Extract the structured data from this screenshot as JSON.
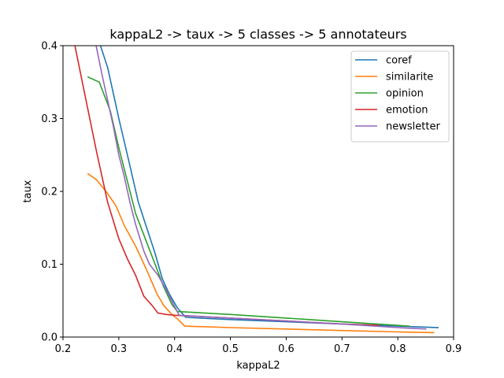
{
  "chart_data": {
    "type": "line",
    "title": "kappaL2 -> taux -> 5 classes -> 5 annotateurs",
    "xlabel": "kappaL2",
    "ylabel": "taux",
    "xlim": [
      0.2,
      0.9
    ],
    "ylim": [
      0.0,
      0.4
    ],
    "xticks": [
      0.2,
      0.3,
      0.4,
      0.5,
      0.6,
      0.7,
      0.8,
      0.9
    ],
    "yticks": [
      0.0,
      0.1,
      0.2,
      0.3,
      0.4
    ],
    "xtick_labels": [
      "0.2",
      "0.3",
      "0.4",
      "0.5",
      "0.6",
      "0.7",
      "0.8",
      "0.9"
    ],
    "ytick_labels": [
      "0.0",
      "0.1",
      "0.2",
      "0.3",
      "0.4"
    ],
    "grid": false,
    "legend_position": "top-right",
    "series": [
      {
        "name": "coref",
        "color": "#1f77b4",
        "x": [
          0.265,
          0.28,
          0.3,
          0.32,
          0.335,
          0.35,
          0.365,
          0.378,
          0.39,
          0.405,
          0.42,
          0.5,
          0.6,
          0.7,
          0.8,
          0.872
        ],
        "y": [
          0.405,
          0.37,
          0.3,
          0.235,
          0.185,
          0.15,
          0.115,
          0.08,
          0.06,
          0.04,
          0.027,
          0.024,
          0.021,
          0.018,
          0.015,
          0.013
        ]
      },
      {
        "name": "similarite",
        "color": "#ff7f0e",
        "x": [
          0.245,
          0.26,
          0.28,
          0.295,
          0.31,
          0.33,
          0.35,
          0.368,
          0.38,
          0.395,
          0.405,
          0.418,
          0.5,
          0.6,
          0.7,
          0.8,
          0.864
        ],
        "y": [
          0.224,
          0.216,
          0.197,
          0.18,
          0.153,
          0.125,
          0.092,
          0.06,
          0.044,
          0.031,
          0.025,
          0.015,
          0.013,
          0.011,
          0.009,
          0.007,
          0.006
        ]
      },
      {
        "name": "opinion",
        "color": "#2ca02c",
        "x": [
          0.245,
          0.265,
          0.285,
          0.3,
          0.315,
          0.33,
          0.35,
          0.365,
          0.38,
          0.395,
          0.405,
          0.5,
          0.6,
          0.7,
          0.8,
          0.82
        ],
        "y": [
          0.357,
          0.35,
          0.31,
          0.26,
          0.215,
          0.17,
          0.13,
          0.1,
          0.07,
          0.045,
          0.035,
          0.031,
          0.026,
          0.021,
          0.016,
          0.015
        ]
      },
      {
        "name": "emotion",
        "color": "#d62728",
        "x": [
          0.22,
          0.24,
          0.26,
          0.28,
          0.3,
          0.315,
          0.33,
          0.345,
          0.36,
          0.37,
          0.385,
          0.4,
          0.5,
          0.6,
          0.7,
          0.765
        ],
        "y": [
          0.405,
          0.33,
          0.255,
          0.185,
          0.135,
          0.108,
          0.085,
          0.056,
          0.043,
          0.033,
          0.031,
          0.03,
          0.026,
          0.022,
          0.018,
          0.016
        ]
      },
      {
        "name": "newsletter",
        "color": "#9467bd",
        "x": [
          0.258,
          0.27,
          0.28,
          0.29,
          0.3,
          0.31,
          0.32,
          0.33,
          0.345,
          0.355,
          0.37,
          0.385,
          0.398,
          0.408,
          0.5,
          0.6,
          0.7,
          0.8,
          0.85
        ],
        "y": [
          0.405,
          0.36,
          0.325,
          0.29,
          0.25,
          0.22,
          0.185,
          0.155,
          0.118,
          0.1,
          0.085,
          0.065,
          0.045,
          0.03,
          0.026,
          0.022,
          0.018,
          0.013,
          0.011
        ]
      }
    ]
  }
}
